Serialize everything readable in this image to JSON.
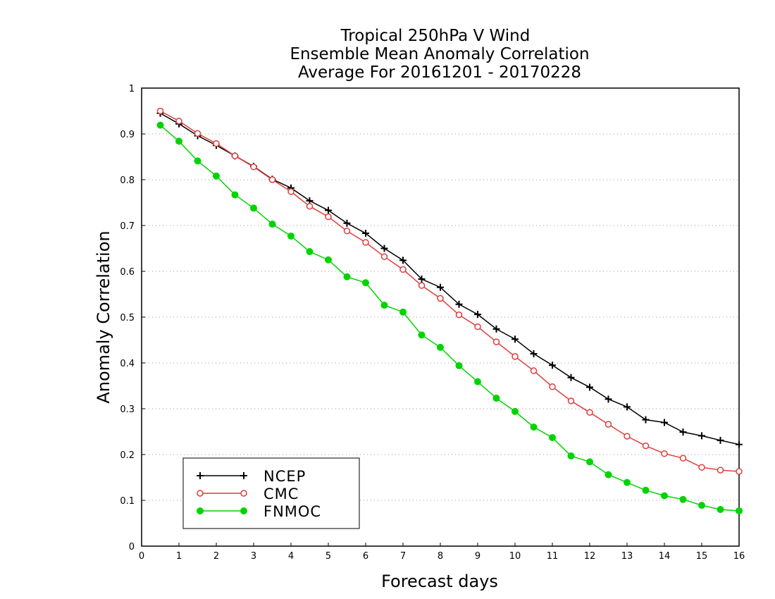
{
  "chart_data": {
    "type": "line",
    "title": [
      "Tropical 250hPa V Wind",
      "Ensemble Mean Anomaly Correlation",
      "Average For 20161201 - 20170228"
    ],
    "xlabel": "Forecast days",
    "ylabel": "Anomaly Correlation",
    "xlim": [
      0,
      16
    ],
    "ylim": [
      0,
      1
    ],
    "xticks": [
      "0",
      "1",
      "2",
      "3",
      "4",
      "5",
      "6",
      "7",
      "8",
      "9",
      "10",
      "11",
      "12",
      "13",
      "14",
      "15",
      "16"
    ],
    "yticks": [
      "0",
      "0.1",
      "0.2",
      "0.3",
      "0.4",
      "0.5",
      "0.6",
      "0.7",
      "0.8",
      "0.9",
      "1"
    ],
    "grid": "horizontal dotted",
    "legend_position": "bottom-left",
    "x": [
      0.5,
      1,
      1.5,
      2,
      2.5,
      3,
      3.5,
      4,
      4.5,
      5,
      5.5,
      6,
      6.5,
      7,
      7.5,
      8,
      8.5,
      9,
      9.5,
      10,
      10.5,
      11,
      11.5,
      12,
      12.5,
      13,
      13.5,
      14,
      14.5,
      15,
      15.5,
      16
    ],
    "series": [
      {
        "name": "NCEP",
        "color": "#000000",
        "marker": "plus",
        "values": [
          0.945,
          0.922,
          0.896,
          0.875,
          0.852,
          0.829,
          0.801,
          0.782,
          0.754,
          0.733,
          0.705,
          0.683,
          0.65,
          0.624,
          0.583,
          0.565,
          0.528,
          0.506,
          0.474,
          0.452,
          0.42,
          0.395,
          0.368,
          0.347,
          0.321,
          0.304,
          0.276,
          0.27,
          0.249,
          0.241,
          0.231,
          0.222
        ]
      },
      {
        "name": "CMC",
        "color": "#e03c3c",
        "marker": "open-circle",
        "values": [
          0.95,
          0.928,
          0.901,
          0.879,
          0.852,
          0.828,
          0.8,
          0.774,
          0.742,
          0.719,
          0.688,
          0.663,
          0.632,
          0.604,
          0.569,
          0.541,
          0.505,
          0.479,
          0.446,
          0.414,
          0.383,
          0.348,
          0.317,
          0.292,
          0.266,
          0.24,
          0.219,
          0.202,
          0.192,
          0.172,
          0.166,
          0.163
        ]
      },
      {
        "name": "FNMOC",
        "color": "#00d400",
        "marker": "filled-circle",
        "values": [
          0.919,
          0.884,
          0.841,
          0.808,
          0.767,
          0.738,
          0.703,
          0.677,
          0.643,
          0.625,
          0.588,
          0.575,
          0.526,
          0.511,
          0.461,
          0.434,
          0.394,
          0.359,
          0.323,
          0.294,
          0.26,
          0.237,
          0.197,
          0.184,
          0.156,
          0.139,
          0.122,
          0.11,
          0.102,
          0.089,
          0.08,
          0.077
        ]
      }
    ]
  }
}
